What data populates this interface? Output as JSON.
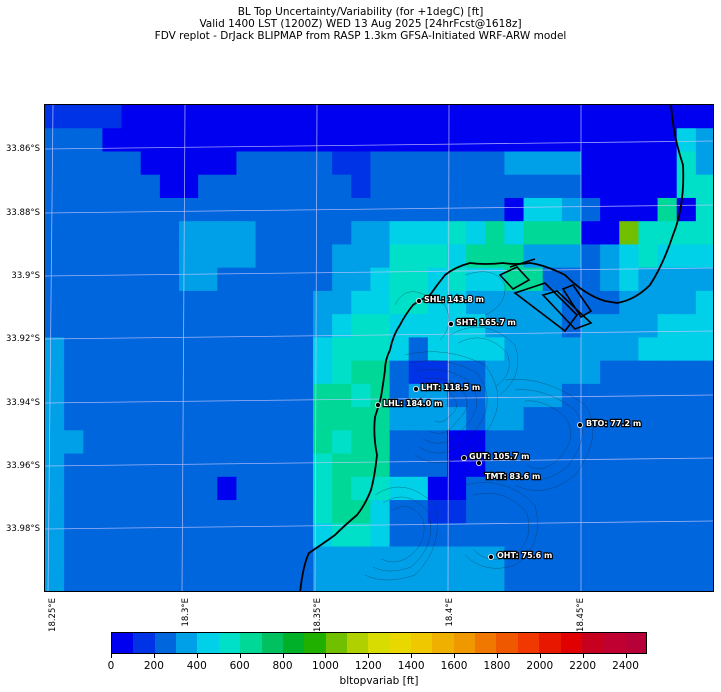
{
  "header": {
    "line1": "BL Top Uncertainty/Variability (for +1degC) [ft]",
    "line2": "Valid 1400 LST (1200Z) WED 13 Aug 2025 [24hrFcst@1618z]",
    "line3": "FDV replot - DrJack BLIPMAP from RASP 1.3km GFSA-Initiated WRF-ARW model"
  },
  "axes": {
    "lat_labels": [
      "33.86°S",
      "33.88°S",
      "33.9°S",
      "33.92°S",
      "33.94°S",
      "33.96°S",
      "33.98°S"
    ],
    "lon_labels": [
      "18.25°E",
      "18.3°E",
      "18.35°E",
      "18.4°E",
      "18.45°E"
    ]
  },
  "colorbar": {
    "label": "bltopvariab [ft]",
    "ticks": [
      "0",
      "200",
      "400",
      "600",
      "800",
      "1000",
      "1200",
      "1400",
      "1600",
      "1800",
      "2000",
      "2200",
      "2400"
    ],
    "colors": [
      "#0000f0",
      "#0033e6",
      "#0066dd",
      "#00a0e8",
      "#00d0e8",
      "#00e0c8",
      "#00d898",
      "#00c060",
      "#00b028",
      "#20b000",
      "#70c000",
      "#b0d000",
      "#d8dc00",
      "#e8d800",
      "#f0c800",
      "#f0b000",
      "#f09800",
      "#f07800",
      "#f05800",
      "#f03800",
      "#e81800",
      "#e00000",
      "#c80020",
      "#c00030",
      "#b80038"
    ]
  },
  "stations": [
    {
      "id": "SHL",
      "label": "SHL: 143.8 m"
    },
    {
      "id": "SHT",
      "label": "SHT: 165.7 m"
    },
    {
      "id": "LHT",
      "label": "LHT: 118.5 m"
    },
    {
      "id": "LHL",
      "label": "LHL: 184.0 m"
    },
    {
      "id": "BTO",
      "label": "BTO: 77.2 m"
    },
    {
      "id": "GUT",
      "label": "GUT: 105.7 m"
    },
    {
      "id": "TMT",
      "label": "TMT: 83.6 m"
    },
    {
      "id": "OHT",
      "label": "OHT: 75.6 m"
    }
  ],
  "grid_legend": {
    "0": "#0000f0",
    "1": "#0033e6",
    "2": "#0066dd",
    "3": "#00a0e8",
    "4": "#00d0e8",
    "5": "#00e0c8",
    "6": "#00d898",
    "7": "#00c060",
    "8": "#70c000"
  },
  "grid_rows": [
    "11110000000000000000000000000000000",
    "22200000000000000000000000000000043",
    "22222000002222211222222233330000053",
    "22222200222222221222222222220000055",
    "22222222222222222222222204432000605",
    "22222223333222223344454646660085555",
    "22222223333222233355546663332345444",
    "22222223322222233455454466222343333",
    "22222222222222334455443333322233334",
    "22222222222222345544444333323333444",
    "32222222222222455542444433333334444",
    "32222222222222456621122333333222222",
    "32222222222222665623322333322222222",
    "32222222222222666633332332222222222",
    "33222222222222656622200222222222222",
    "32222222222222566622200222222222222",
    "32222222202222565544002222222222222",
    "32222222222222566422112222222222222",
    "32222222222222455422222222222222222",
    "32222222222222333333333322222222222",
    "32222222222222333333333322222222222"
  ]
}
